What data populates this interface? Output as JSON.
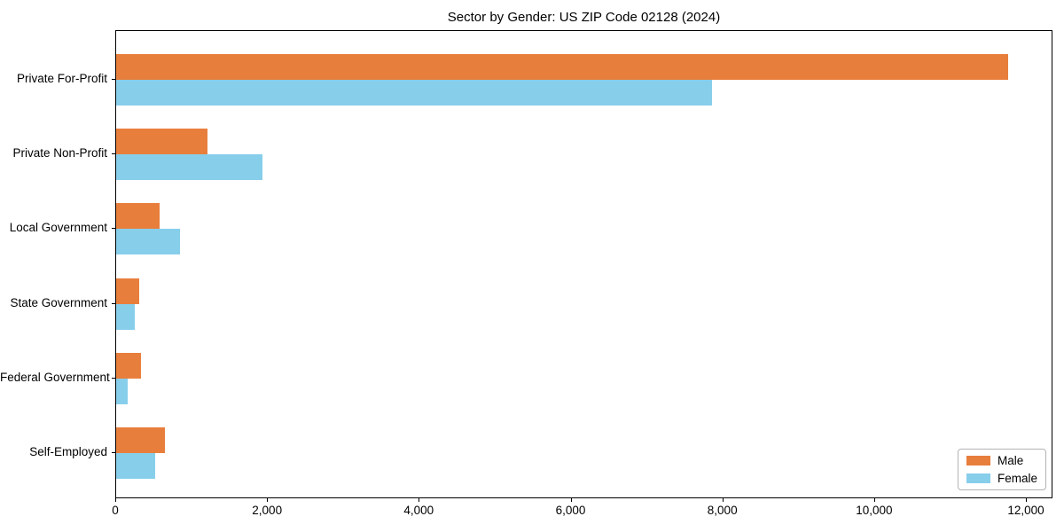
{
  "chart_data": {
    "type": "bar",
    "orientation": "horizontal",
    "title": "Sector by Gender: US ZIP Code 02128 (2024)",
    "xlabel": "",
    "ylabel": "",
    "categories": [
      "Private For-Profit",
      "Private Non-Profit",
      "Local Government",
      "State Government",
      "Federal Government",
      "Self-Employed"
    ],
    "series": [
      {
        "name": "Male",
        "color": "#e87e3c",
        "values": [
          11750,
          1200,
          570,
          300,
          325,
          640
        ]
      },
      {
        "name": "Female",
        "color": "#87ceeb",
        "values": [
          7850,
          1930,
          835,
          240,
          150,
          510
        ]
      }
    ],
    "xlim": [
      0,
      12350
    ],
    "xticks": [
      0,
      2000,
      4000,
      6000,
      8000,
      10000,
      12000
    ],
    "xtick_labels": [
      "0",
      "2,000",
      "4,000",
      "6,000",
      "8,000",
      "10,000",
      "12,000"
    ],
    "legend_position": "lower right",
    "grid": false,
    "axis_color": "#000000",
    "background_color": "#ffffff"
  }
}
